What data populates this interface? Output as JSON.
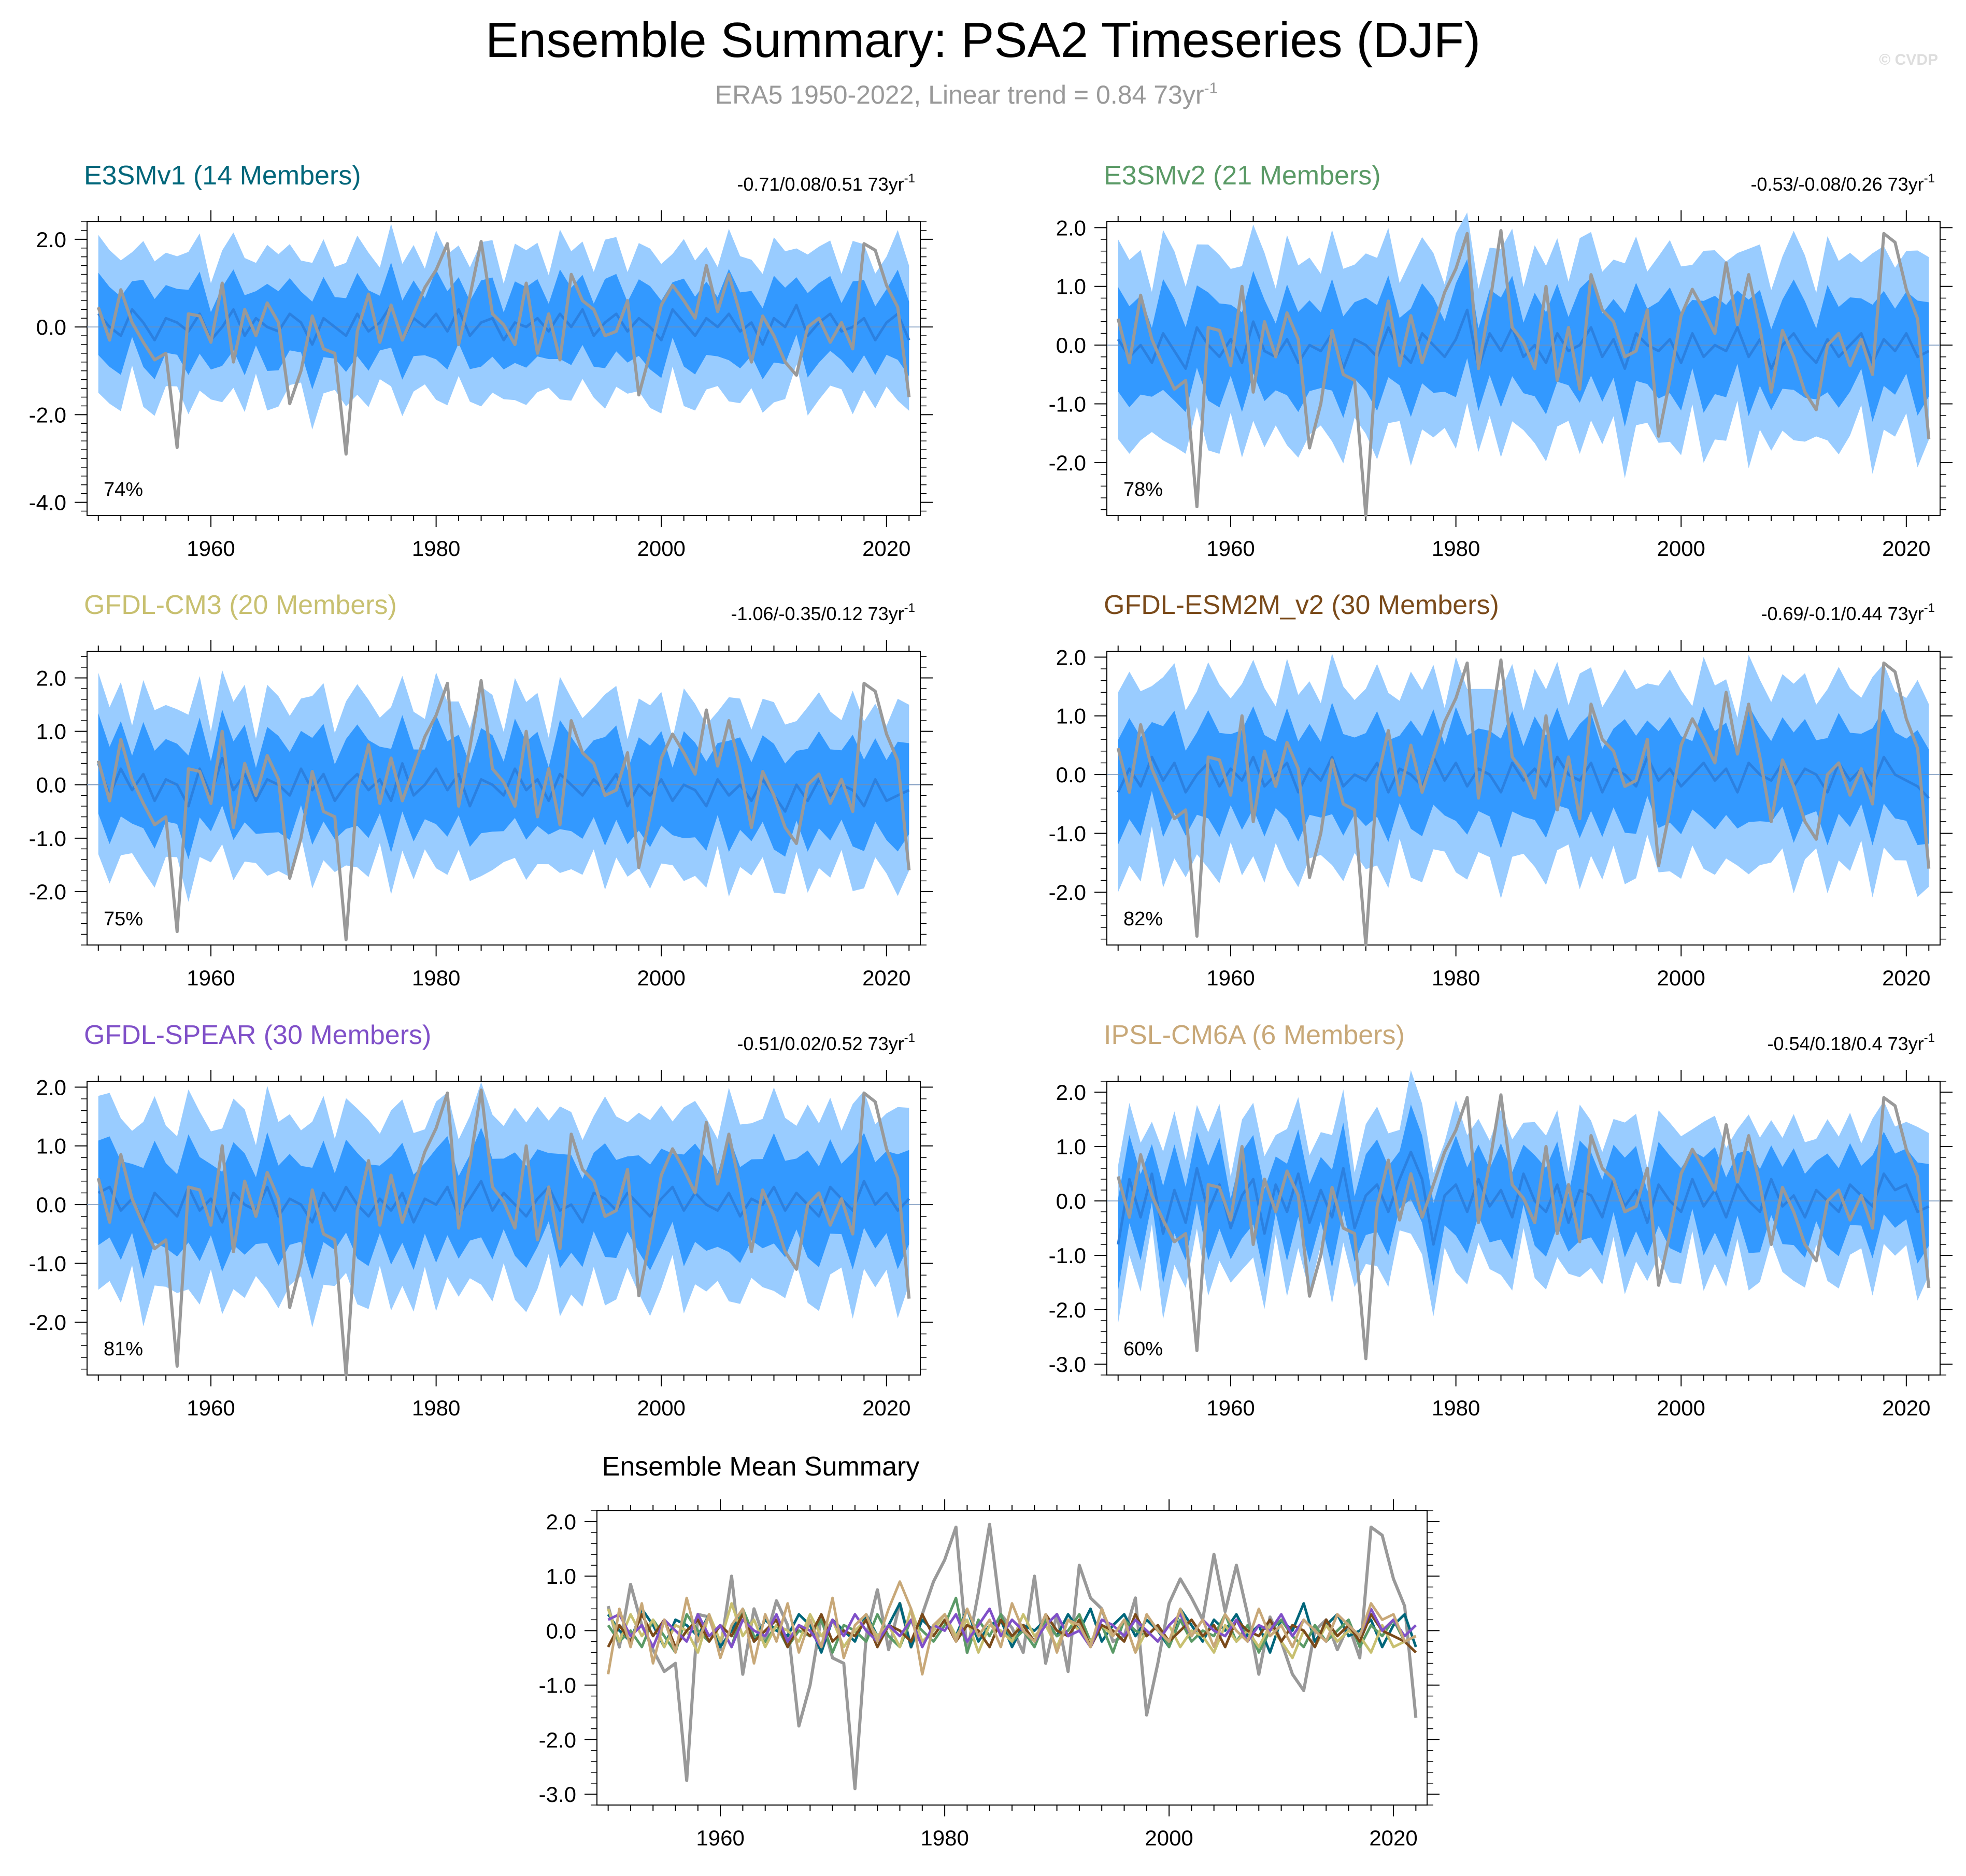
{
  "title": "Ensemble Summary: PSA2 Timeseries (DJF)",
  "subtitle": "ERA5 1950-2022, Linear trend = 0.84 73yr",
  "subtitle_sup": "-1",
  "watermark": "© CVDP",
  "colors": {
    "obs": "#999999",
    "band_outer": "#99ccff",
    "band_inner": "#3399ff",
    "mean": "#2b80e0"
  },
  "xlim": [
    1949,
    2023
  ],
  "x_ticks": [
    "1960",
    "1980",
    "2000",
    "2020"
  ],
  "observed": [
    0.45,
    -0.3,
    0.85,
    0.1,
    -0.35,
    -0.75,
    -0.6,
    -2.75,
    0.3,
    0.25,
    -0.35,
    1.0,
    -0.8,
    0.4,
    -0.2,
    0.55,
    0.1,
    -1.75,
    -1.0,
    0.25,
    -0.5,
    -0.6,
    -2.9,
    -0.1,
    0.75,
    -0.35,
    0.5,
    -0.3,
    0.3,
    0.9,
    1.3,
    1.9,
    -0.4,
    0.7,
    1.95,
    0.3,
    0.05,
    -0.4,
    1.0,
    -0.6,
    0.3,
    -0.75,
    1.2,
    0.6,
    0.4,
    -0.2,
    -0.1,
    0.6,
    -1.55,
    -0.6,
    0.5,
    0.95,
    0.6,
    0.2,
    1.4,
    0.35,
    1.2,
    0.3,
    -0.8,
    0.25,
    -0.2,
    -0.8,
    -1.1,
    0.0,
    0.2,
    -0.35,
    0.1,
    -0.5,
    1.9,
    1.75,
    0.95,
    0.45,
    -1.6
  ],
  "panels": [
    {
      "title": "E3SMv1 (14 Members)",
      "color": "#00667a",
      "stats": "-0.71/0.08/0.51 73yr",
      "stats_sup": "-1",
      "percent": "74%",
      "ylim": [
        -4.3,
        2.4
      ],
      "y_ticks": [
        "2.0",
        "0.0",
        "-2.0",
        "-4.0"
      ],
      "y_tick_values": [
        2,
        0,
        -2,
        -4
      ],
      "ens_mean": [
        0.3,
        0.0,
        -0.2,
        0.4,
        0.1,
        -0.3,
        0.2,
        0.1,
        -0.1,
        0.3,
        -0.3,
        0.0,
        0.4,
        -0.2,
        0.2,
        0.0,
        -0.1,
        0.3,
        0.1,
        -0.4,
        0.2,
        0.0,
        -0.2,
        0.3,
        -0.1,
        0.1,
        0.5,
        -0.3,
        0.2,
        0.0,
        0.3,
        -0.1,
        0.4,
        -0.2,
        0.1,
        0.2,
        -0.3,
        0.1,
        0.0,
        0.2,
        -0.1,
        0.3,
        0.0,
        0.4,
        -0.2,
        0.1,
        0.3,
        -0.1,
        0.2,
        0.0,
        -0.3,
        0.4,
        0.1,
        -0.2,
        0.2,
        0.0,
        0.3,
        -0.1,
        0.1,
        -0.4,
        0.2,
        0.0,
        0.5,
        -0.2,
        0.1,
        0.3,
        -0.1,
        0.0,
        0.2,
        -0.3,
        0.1,
        0.3,
        -0.3
      ],
      "inner_halfwidth": 0.85,
      "outer_halfwidth": 1.65
    },
    {
      "title": "E3SMv2 (21 Members)",
      "color": "#5a9a66",
      "stats": "-0.53/-0.08/0.26 73yr",
      "stats_sup": "-1",
      "percent": "78%",
      "ylim": [
        -2.9,
        2.1
      ],
      "y_ticks": [
        "2.0",
        "1.0",
        "0.0",
        "-1.0",
        "-2.0"
      ],
      "y_tick_values": [
        2,
        1,
        0,
        -1,
        -2
      ],
      "ens_mean": [
        0.1,
        -0.2,
        0.0,
        -0.3,
        0.2,
        -0.1,
        -0.4,
        0.3,
        0.0,
        -0.2,
        0.1,
        -0.3,
        0.4,
        -0.1,
        -0.2,
        0.1,
        -0.3,
        0.0,
        -0.1,
        0.2,
        -0.4,
        0.1,
        0.0,
        -0.2,
        0.3,
        -0.1,
        -0.3,
        0.2,
        0.0,
        -0.2,
        0.1,
        0.6,
        -0.4,
        0.2,
        -0.1,
        0.3,
        -0.2,
        0.0,
        -0.3,
        0.2,
        -0.1,
        0.0,
        0.3,
        -0.2,
        0.1,
        -0.4,
        0.2,
        0.0,
        -0.1,
        0.1,
        -0.3,
        0.2,
        -0.2,
        0.0,
        -0.1,
        0.3,
        -0.2,
        0.1,
        -0.4,
        0.0,
        0.2,
        -0.1,
        -0.3,
        0.1,
        -0.2,
        0.0,
        0.2,
        -0.3,
        0.1,
        -0.1,
        0.2,
        -0.2,
        -0.1
      ],
      "inner_halfwidth": 0.8,
      "outer_halfwidth": 1.55
    },
    {
      "title": "GFDL-CM3 (20 Members)",
      "color": "#c8c070",
      "stats": "-1.06/-0.35/0.12 73yr",
      "stats_sup": "-1",
      "percent": "75%",
      "ylim": [
        -3.0,
        2.5
      ],
      "y_ticks": [
        "2.0",
        "1.0",
        "0.0",
        "-1.0",
        "-2.0"
      ],
      "y_tick_values": [
        2,
        1,
        0,
        -1,
        -2
      ],
      "ens_mean": [
        0.4,
        -0.2,
        0.3,
        -0.1,
        0.2,
        -0.3,
        0.1,
        0.0,
        -0.4,
        0.3,
        -0.2,
        0.5,
        -0.1,
        0.2,
        -0.3,
        0.1,
        0.0,
        -0.2,
        0.3,
        -0.1,
        0.2,
        -0.3,
        0.0,
        0.2,
        -0.1,
        0.1,
        -0.3,
        0.4,
        -0.2,
        0.0,
        0.3,
        -0.1,
        0.2,
        -0.4,
        0.1,
        0.0,
        -0.2,
        0.3,
        -0.1,
        0.1,
        -0.3,
        0.2,
        0.0,
        -0.2,
        0.1,
        -0.1,
        0.2,
        -0.4,
        0.0,
        -0.2,
        0.1,
        -0.3,
        0.0,
        -0.1,
        -0.4,
        0.1,
        -0.2,
        0.0,
        -0.3,
        0.1,
        -0.2,
        -0.5,
        0.0,
        -0.3,
        0.1,
        -0.2,
        0.0,
        -0.1,
        -0.4,
        0.1,
        -0.3,
        -0.2,
        -0.1
      ],
      "inner_halfwidth": 0.85,
      "outer_halfwidth": 1.55
    },
    {
      "title": "GFDL-ESM2M_v2 (30 Members)",
      "color": "#7a4a1a",
      "stats": "-0.69/-0.1/0.44 73yr",
      "stats_sup": "-1",
      "percent": "82%",
      "ylim": [
        -2.9,
        2.1
      ],
      "y_ticks": [
        "2.0",
        "1.0",
        "0.0",
        "-1.0",
        "-2.0"
      ],
      "y_tick_values": [
        2,
        1,
        0,
        -1,
        -2
      ],
      "ens_mean": [
        -0.3,
        0.1,
        -0.2,
        0.3,
        -0.1,
        0.2,
        -0.3,
        0.0,
        0.2,
        -0.2,
        0.1,
        -0.1,
        0.3,
        -0.2,
        0.0,
        0.2,
        -0.3,
        0.1,
        -0.1,
        0.3,
        -0.2,
        0.0,
        -0.1,
        0.2,
        -0.3,
        0.1,
        0.0,
        -0.2,
        0.3,
        -0.1,
        0.2,
        -0.2,
        0.1,
        0.0,
        -0.3,
        0.2,
        -0.1,
        0.1,
        -0.2,
        0.3,
        0.0,
        -0.1,
        0.2,
        -0.3,
        0.1,
        0.0,
        -0.2,
        0.3,
        -0.1,
        0.1,
        -0.2,
        0.0,
        0.2,
        -0.1,
        0.1,
        -0.3,
        0.2,
        0.0,
        -0.1,
        0.2,
        -0.2,
        0.1,
        0.0,
        -0.3,
        0.2,
        -0.1,
        0.1,
        -0.2,
        0.3,
        0.0,
        -0.1,
        -0.2,
        -0.4
      ],
      "inner_halfwidth": 0.8,
      "outer_halfwidth": 1.55
    },
    {
      "title": "GFDL-SPEAR (30 Members)",
      "color": "#8050c8",
      "stats": "-0.51/0.02/0.52 73yr",
      "stats_sup": "-1",
      "percent": "81%",
      "ylim": [
        -2.9,
        2.1
      ],
      "y_ticks": [
        "2.0",
        "1.0",
        "0.0",
        "-1.0",
        "-2.0"
      ],
      "y_tick_values": [
        2,
        1,
        0,
        -1,
        -2
      ],
      "ens_mean": [
        0.2,
        0.3,
        -0.1,
        0.1,
        -0.3,
        0.2,
        0.0,
        -0.2,
        0.3,
        -0.1,
        0.1,
        -0.3,
        0.2,
        0.0,
        -0.1,
        0.3,
        -0.2,
        0.1,
        0.0,
        -0.3,
        0.2,
        -0.1,
        0.3,
        0.0,
        -0.2,
        0.1,
        -0.1,
        0.2,
        -0.3,
        0.1,
        0.0,
        0.3,
        -0.2,
        0.1,
        0.4,
        -0.1,
        0.2,
        0.0,
        -0.2,
        0.1,
        0.3,
        -0.1,
        0.0,
        -0.3,
        0.2,
        0.1,
        -0.1,
        0.2,
        0.0,
        -0.2,
        0.1,
        0.3,
        -0.1,
        0.2,
        0.0,
        -0.1,
        0.2,
        -0.2,
        0.1,
        0.0,
        0.3,
        -0.1,
        0.2,
        0.0,
        -0.2,
        0.3,
        0.1,
        -0.1,
        0.4,
        0.0,
        0.2,
        -0.1,
        0.1
      ],
      "inner_halfwidth": 0.8,
      "outer_halfwidth": 1.5
    },
    {
      "title": "IPSL-CM6A (6 Members)",
      "color": "#c8a878",
      "stats": "-0.54/0.18/0.4 73yr",
      "stats_sup": "-1",
      "percent": "60%",
      "ylim": [
        -3.2,
        2.2
      ],
      "y_ticks": [
        "2.0",
        "1.0",
        "0.0",
        "-1.0",
        "-2.0",
        "-3.0"
      ],
      "y_tick_values": [
        2,
        1,
        0,
        -1,
        -2,
        -3
      ],
      "ens_mean": [
        -0.8,
        0.4,
        -0.3,
        0.5,
        -0.6,
        0.2,
        -0.4,
        0.6,
        -0.2,
        0.3,
        -0.5,
        0.1,
        0.4,
        -0.6,
        0.3,
        -0.2,
        0.5,
        -0.4,
        0.2,
        -0.3,
        0.6,
        -0.5,
        0.1,
        0.3,
        -0.2,
        0.4,
        0.9,
        0.4,
        -0.8,
        0.1,
        0.3,
        -0.2,
        0.4,
        -0.1,
        0.2,
        -0.3,
        0.5,
        0.0,
        -0.2,
        0.3,
        -0.4,
        0.2,
        0.1,
        -0.3,
        0.4,
        -0.1,
        0.2,
        -0.4,
        0.3,
        0.0,
        -0.2,
        0.4,
        -0.1,
        0.2,
        -0.3,
        0.3,
        0.0,
        -0.2,
        0.4,
        -0.1,
        0.1,
        -0.3,
        0.2,
        0.0,
        -0.2,
        0.3,
        0.1,
        -0.1,
        0.5,
        0.2,
        0.3,
        -0.2,
        -0.1
      ],
      "inner_halfwidth": 0.75,
      "outer_halfwidth": 1.3
    }
  ],
  "mean_summary": {
    "title": "Ensemble Mean Summary",
    "ylim": [
      -3.2,
      2.2
    ],
    "y_ticks": [
      "2.0",
      "1.0",
      "0.0",
      "-1.0",
      "-2.0",
      "-3.0"
    ],
    "y_tick_values": [
      2,
      1,
      0,
      -1,
      -2,
      -3
    ]
  }
}
